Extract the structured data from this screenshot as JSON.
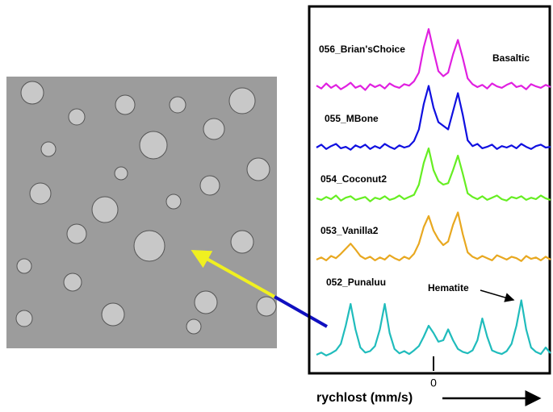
{
  "chart_data": {
    "type": "line",
    "xlabel": "rychlost (mm/s)",
    "annotations": [
      "Basaltic",
      "Hematite"
    ],
    "x": [
      -12,
      -11.5,
      -11,
      -10.5,
      -10,
      -9.5,
      -9,
      -8.5,
      -8,
      -7.5,
      -7,
      -6.5,
      -6,
      -5.5,
      -5,
      -4.5,
      -4,
      -3.5,
      -3,
      -2.5,
      -2,
      -1.5,
      -1,
      -0.5,
      0,
      0.5,
      1,
      1.5,
      2,
      2.5,
      3,
      3.5,
      4,
      4.5,
      5,
      5.5,
      6,
      6.5,
      7,
      7.5,
      8,
      8.5,
      9,
      9.5,
      10,
      10.5,
      11,
      11.5,
      12
    ],
    "xlim": [
      -12,
      12
    ],
    "xticks": [
      0
    ],
    "ylim": [
      0,
      10
    ],
    "series": [
      {
        "name": "056_Brian'sChoice",
        "color": "#e020e0",
        "values": [
          1.2,
          0.8,
          1.5,
          0.9,
          1.3,
          0.7,
          1.1,
          1.6,
          0.9,
          1.2,
          0.6,
          1.4,
          1.0,
          1.3,
          0.8,
          1.5,
          1.1,
          0.9,
          1.4,
          1.2,
          1.8,
          3.0,
          6.5,
          9.0,
          6.0,
          3.2,
          2.5,
          3.0,
          5.5,
          7.5,
          5.0,
          2.2,
          1.4,
          1.0,
          1.3,
          0.8,
          1.5,
          1.1,
          0.9,
          1.3,
          1.6,
          1.0,
          1.2,
          0.7,
          1.4,
          1.1,
          0.9,
          1.3,
          1.0
        ]
      },
      {
        "name": "055_MBone",
        "color": "#1010e0",
        "values": [
          1.0,
          1.4,
          0.8,
          1.2,
          1.5,
          0.9,
          1.1,
          0.7,
          1.3,
          1.0,
          1.4,
          0.8,
          1.2,
          0.9,
          1.5,
          1.1,
          0.8,
          1.3,
          1.0,
          1.2,
          1.9,
          3.5,
          7.0,
          9.5,
          6.5,
          4.5,
          4.0,
          3.5,
          6.0,
          8.5,
          5.5,
          2.0,
          1.2,
          1.5,
          0.9,
          1.1,
          1.4,
          0.8,
          1.2,
          1.0,
          1.3,
          0.9,
          1.5,
          1.1,
          0.8,
          1.2,
          1.4,
          1.0,
          1.1
        ]
      },
      {
        "name": "054_Coconut2",
        "color": "#66ee22",
        "values": [
          1.1,
          0.9,
          1.3,
          1.0,
          1.5,
          0.8,
          1.2,
          1.4,
          0.9,
          1.1,
          1.3,
          0.7,
          1.2,
          1.0,
          1.4,
          0.9,
          1.1,
          1.5,
          1.0,
          1.3,
          1.6,
          3.0,
          6.0,
          8.0,
          5.0,
          3.5,
          3.0,
          3.2,
          5.0,
          7.0,
          4.5,
          1.8,
          1.3,
          1.0,
          1.4,
          0.9,
          1.2,
          1.5,
          1.0,
          0.8,
          1.3,
          1.1,
          1.4,
          0.9,
          1.2,
          1.0,
          1.5,
          1.1,
          0.9
        ]
      },
      {
        "name": "053_Vanilla2",
        "color": "#e8a820",
        "values": [
          1.0,
          1.3,
          0.9,
          1.5,
          1.2,
          1.8,
          2.5,
          3.2,
          2.4,
          1.5,
          1.1,
          1.4,
          0.9,
          1.3,
          1.0,
          1.6,
          1.2,
          0.9,
          1.4,
          1.1,
          1.8,
          3.2,
          5.5,
          7.0,
          5.0,
          3.8,
          3.0,
          3.5,
          5.8,
          7.5,
          4.5,
          2.0,
          1.4,
          1.1,
          1.5,
          1.2,
          0.9,
          1.6,
          1.3,
          1.0,
          1.4,
          1.2,
          0.8,
          1.5,
          1.1,
          1.3,
          0.9,
          1.4,
          1.0
        ]
      },
      {
        "name": "052_Punaluu",
        "color": "#20bcbc",
        "values": [
          1.0,
          1.3,
          0.9,
          1.2,
          1.6,
          2.5,
          5.0,
          8.0,
          4.5,
          2.0,
          1.3,
          1.5,
          2.2,
          4.5,
          8.0,
          4.0,
          1.8,
          1.2,
          1.5,
          1.1,
          1.6,
          2.2,
          3.5,
          5.0,
          4.0,
          2.8,
          3.0,
          4.5,
          3.0,
          1.8,
          1.4,
          1.2,
          1.6,
          3.0,
          6.0,
          3.5,
          1.6,
          1.3,
          1.1,
          1.5,
          2.5,
          5.0,
          8.5,
          4.5,
          2.0,
          1.4,
          1.1,
          2.0,
          1.2
        ]
      }
    ]
  }
}
